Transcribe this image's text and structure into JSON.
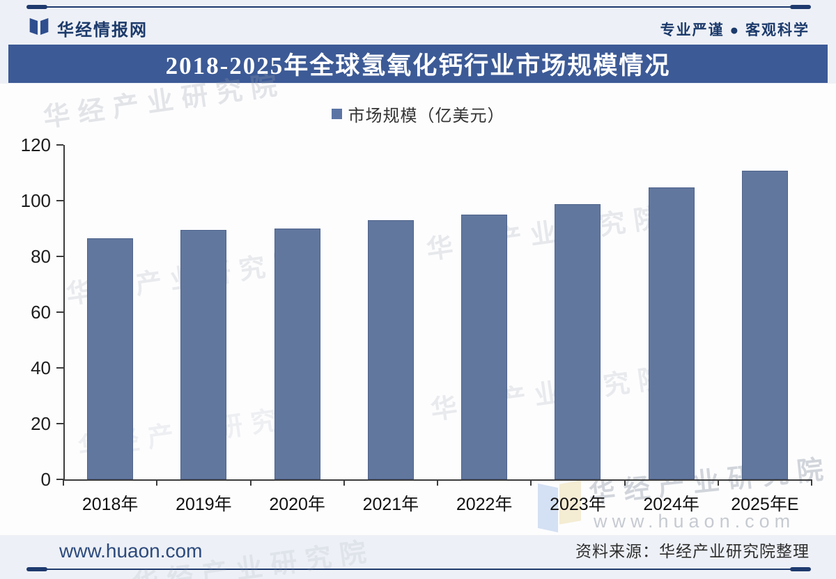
{
  "header": {
    "brand": "华经情报网",
    "slogan": "专业严谨 ● 客观科学"
  },
  "title_bar": {
    "text": "2018-2025年全球氢氧化钙行业市场规模情况"
  },
  "legend": {
    "label": "市场规模（亿美元）"
  },
  "chart_data": {
    "type": "bar",
    "title": "2018-2025年全球氢氧化钙行业市场规模情况",
    "categories": [
      "2018年",
      "2019年",
      "2020年",
      "2021年",
      "2022年",
      "2023年",
      "2024年",
      "2025年E"
    ],
    "series": [
      {
        "name": "市场规模（亿美元）",
        "values": [
          86.5,
          89.5,
          90,
          93,
          95,
          98.7,
          104.8,
          110.7
        ]
      }
    ],
    "xlabel": "",
    "ylabel": "",
    "ylim": [
      0,
      120
    ],
    "yticks": [
      0,
      20,
      40,
      60,
      80,
      100,
      120
    ],
    "grid": false,
    "legend_position": "top-center"
  },
  "footer": {
    "website": "www.huaon.com",
    "source": "资料来源：华经产业研究院整理"
  },
  "watermarks": {
    "text": "华经产业研究院",
    "url": "www.huaon.com"
  },
  "colors": {
    "title_bar_bg": "#3c5a96",
    "rule_line": "#1e3a6e",
    "brand_text": "#1c3a6b",
    "bar_fill": "#61779e",
    "bar_border": "#4f638b",
    "legend_marker": "#5b74a4",
    "strip_bg": "#edf0f6",
    "axis": "#3c3c3c"
  }
}
